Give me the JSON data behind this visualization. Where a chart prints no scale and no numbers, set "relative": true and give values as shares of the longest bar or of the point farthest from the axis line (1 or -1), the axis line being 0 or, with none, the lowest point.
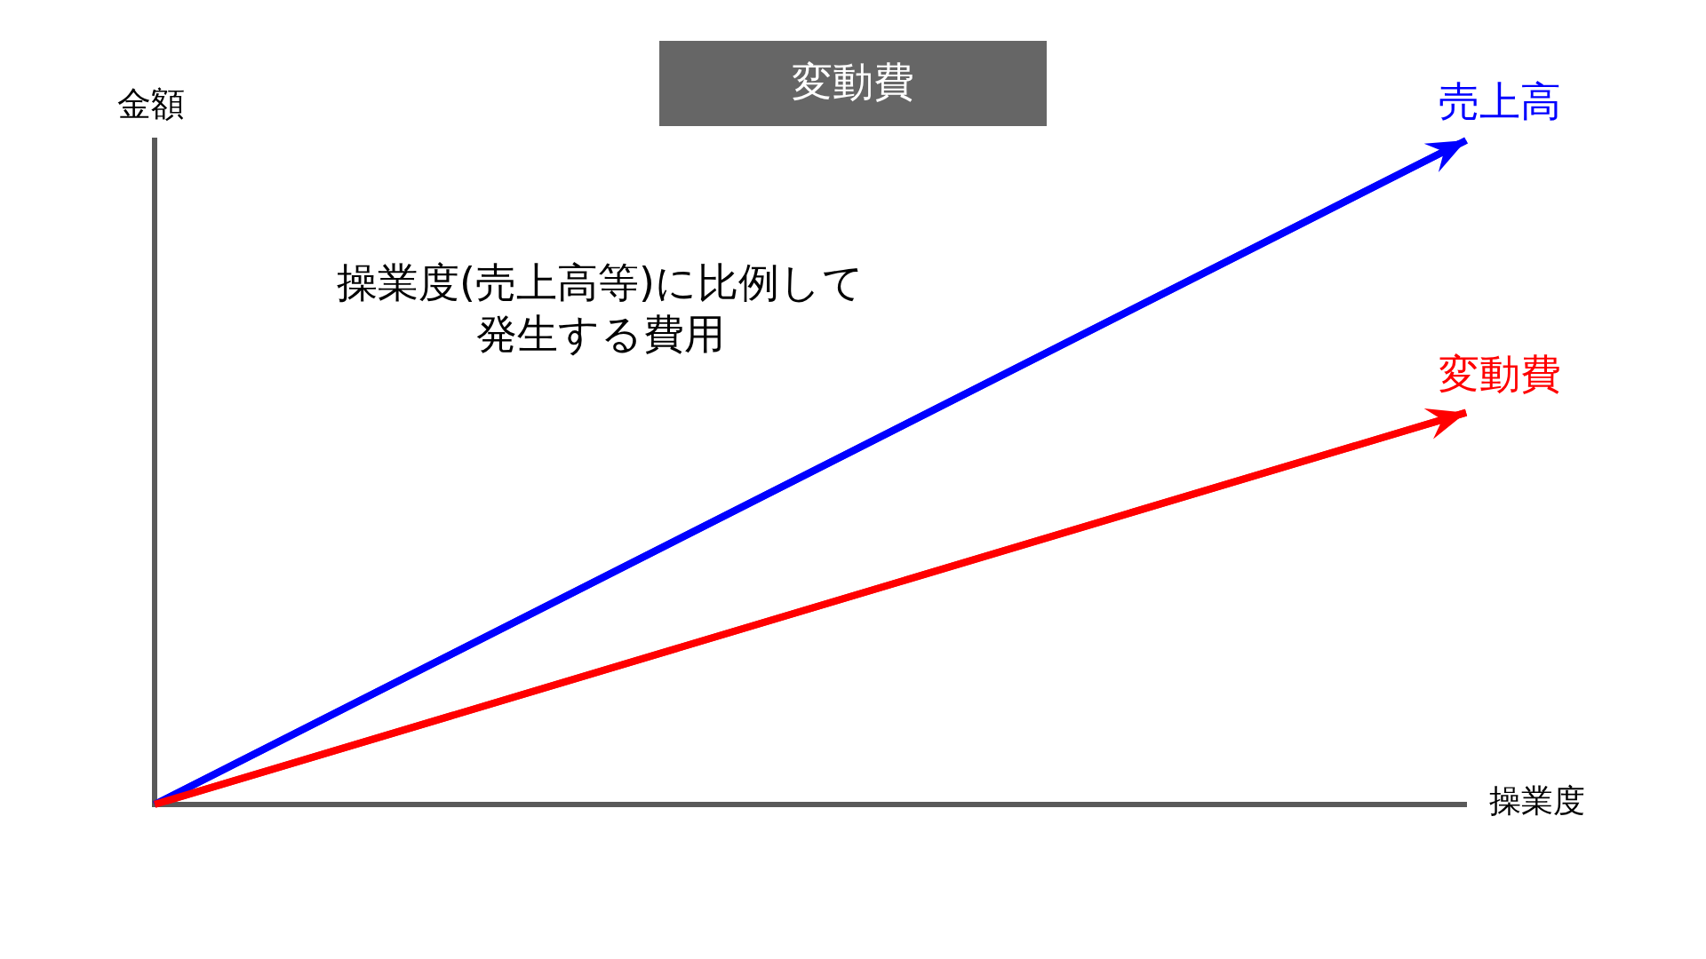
{
  "chart_data": {
    "type": "line",
    "title": "変動費",
    "xlabel": "操業度",
    "ylabel": "金額",
    "annotations": [
      "操業度(売上高等)に比例して発生する費用"
    ],
    "categories": [
      null,
      null
    ],
    "series": [
      {
        "name": "売上高",
        "color": "#0000ff",
        "values": [
          0,
          1
        ]
      },
      {
        "name": "変動費",
        "color": "#ff0000",
        "values": [
          0,
          0.59
        ]
      }
    ],
    "relative": true,
    "legend": false,
    "grid": false,
    "marker": "none",
    "line_style": "solid"
  }
}
